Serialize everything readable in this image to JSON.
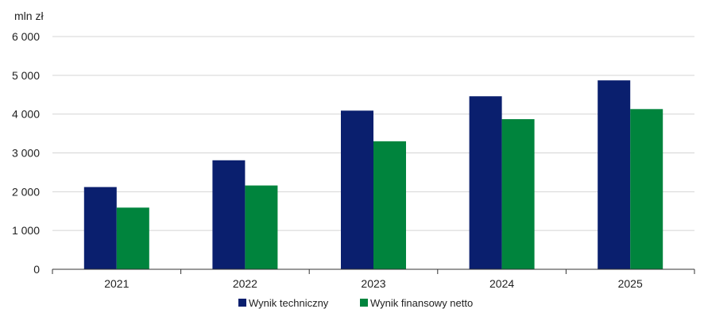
{
  "chart_data": {
    "type": "bar",
    "unit_label": "mln zł",
    "categories": [
      "2021",
      "2022",
      "2023",
      "2024",
      "2025"
    ],
    "series": [
      {
        "name": "Wynik techniczny",
        "color": "#0a1f6e",
        "values": [
          2120,
          2810,
          4090,
          4460,
          4870
        ]
      },
      {
        "name": "Wynik finansowy netto",
        "color": "#00843d",
        "values": [
          1590,
          2160,
          3300,
          3870,
          4130
        ]
      }
    ],
    "y_ticks": [
      "0",
      "1 000",
      "2 000",
      "3 000",
      "4 000",
      "5 000",
      "6 000"
    ],
    "ylim": [
      0,
      6000
    ],
    "grid": true,
    "legend_position": "bottom"
  }
}
